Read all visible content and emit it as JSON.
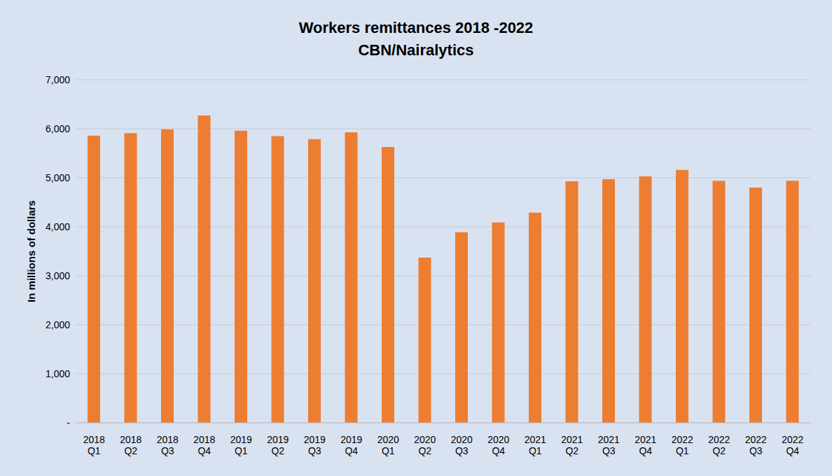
{
  "chart_data": {
    "type": "bar",
    "title": "Workers remittances 2018 -2022",
    "subtitle": "CBN/Nairalytics",
    "y_label": "In millions of dollars",
    "categories": [
      "2018 Q1",
      "2018 Q2",
      "2018 Q3",
      "2018 Q4",
      "2019 Q1",
      "2019 Q2",
      "2019 Q3",
      "2019 Q4",
      "2020 Q1",
      "2020 Q2",
      "2020 Q3",
      "2020 Q4",
      "2021 Q1",
      "2021 Q2",
      "2021 Q3",
      "2021 Q4",
      "2022 Q1",
      "2022 Q2",
      "2022 Q3",
      "2022 Q4"
    ],
    "values": [
      5860,
      5910,
      5990,
      6270,
      5960,
      5850,
      5790,
      5930,
      5630,
      3370,
      3890,
      4090,
      4290,
      4930,
      4970,
      5030,
      5160,
      4940,
      4800,
      4940
    ],
    "color": "#ed7d31",
    "ylim": [
      0,
      7000
    ],
    "yticks": [
      {
        "value": 0,
        "label": "-"
      },
      {
        "value": 1000,
        "label": "1,000"
      },
      {
        "value": 2000,
        "label": "2,000"
      },
      {
        "value": 3000,
        "label": "3,000"
      },
      {
        "value": 4000,
        "label": "4,000"
      },
      {
        "value": 5000,
        "label": "5,000"
      },
      {
        "value": 6000,
        "label": "6,000"
      },
      {
        "value": 7000,
        "label": "7,000"
      }
    ],
    "grid": true
  }
}
